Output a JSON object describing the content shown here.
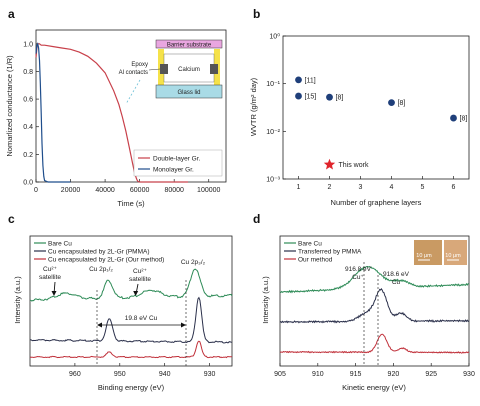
{
  "panels": {
    "a": "a",
    "b": "b",
    "c": "c",
    "d": "d"
  },
  "chart_data": [
    {
      "panel": "a",
      "type": "line",
      "xlabel": "Time (s)",
      "ylabel": "Nomarlized conductance (1/R)",
      "xlim": [
        0,
        110000
      ],
      "ylim": [
        0,
        1.1
      ],
      "xticks": [
        0,
        20000,
        40000,
        60000,
        80000,
        100000
      ],
      "xticklabels": [
        "0",
        "20000",
        "40000",
        "60000",
        "80000",
        "100000"
      ],
      "yticks": [
        0,
        0.2,
        0.4,
        0.6,
        0.8,
        1.0
      ],
      "yticklabels": [
        "0.0",
        "0.2",
        "0.4",
        "0.6",
        "0.8",
        "1.0"
      ],
      "series": [
        {
          "name": "Double-layer Gr.",
          "color": "#c8404a",
          "x": [
            0,
            500,
            1000,
            2000,
            3000,
            5000,
            10000,
            15000,
            20000,
            25000,
            30000,
            35000,
            40000,
            45000,
            48000,
            50000,
            52000,
            54000,
            55000,
            56000,
            57000,
            58000,
            58500,
            59000,
            60000,
            70000,
            88000
          ],
          "y": [
            0.9,
            0.97,
            1.0,
            1.0,
            0.99,
            0.99,
            0.98,
            0.97,
            0.96,
            0.94,
            0.91,
            0.86,
            0.79,
            0.66,
            0.56,
            0.47,
            0.37,
            0.25,
            0.19,
            0.13,
            0.07,
            0.03,
            0.015,
            0.005,
            0.0,
            0.0,
            0.0
          ]
        },
        {
          "name": "Monolayer Gr.",
          "color": "#1f4e8c",
          "x": [
            0,
            500,
            1000,
            1500,
            2000,
            2500,
            3000,
            3500,
            4000,
            4500,
            5000,
            7000,
            20000
          ],
          "y": [
            0.93,
            0.99,
            1.0,
            0.97,
            0.88,
            0.72,
            0.5,
            0.28,
            0.12,
            0.04,
            0.01,
            0.0,
            0.0
          ]
        }
      ],
      "inset": {
        "layers": [
          "Barrier substrate",
          "Calcium",
          "Glass lid"
        ],
        "callout": [
          "Epoxy",
          "Al contacts"
        ],
        "colors": {
          "barrier": "#e9a6e0",
          "calcium": "#ffffff",
          "glass": "#a9dbe6",
          "epoxy": "#f5e24a",
          "contacts": "#555555"
        }
      }
    },
    {
      "panel": "b",
      "type": "scatter",
      "xlabel": "Number of graphene layers",
      "ylabel": "WVTR (g/m² day)",
      "yscale": "log",
      "xlim": [
        0.5,
        6.5
      ],
      "ylim": [
        0.001,
        1
      ],
      "xticks": [
        1,
        2,
        3,
        4,
        5,
        6
      ],
      "xticklabels": [
        "1",
        "2",
        "3",
        "4",
        "5",
        "6"
      ],
      "yticks": [
        0.001,
        0.01,
        0.1,
        1
      ],
      "yticklabels": [
        "10⁻³",
        "10⁻²",
        "10⁻¹",
        "10⁰"
      ],
      "points": [
        {
          "x": 1,
          "y": 0.12,
          "label": "[11]"
        },
        {
          "x": 1,
          "y": 0.055,
          "label": "[15]"
        },
        {
          "x": 2,
          "y": 0.052,
          "label": "[8]"
        },
        {
          "x": 4,
          "y": 0.04,
          "label": "[8]"
        },
        {
          "x": 6,
          "y": 0.019,
          "label": "[8]"
        }
      ],
      "highlight": {
        "x": 2,
        "y": 0.002,
        "label": "This work",
        "color": "#e0242b"
      },
      "point_color": "#1f3f7a"
    },
    {
      "panel": "c",
      "type": "line",
      "xlabel": "Binding energy (eV)",
      "ylabel": "Intensity (a.u.)",
      "xlim": [
        970,
        925
      ],
      "xticks": [
        960,
        950,
        940,
        930
      ],
      "xticklabels": [
        "960",
        "950",
        "940",
        "930"
      ],
      "series": [
        {
          "name": "Bare Cu",
          "color": "#2e8b57"
        },
        {
          "name": "Cu encapsulated by 2L-Gr (PMMA)",
          "color": "#2a2f4a"
        },
        {
          "name": "Cu encapsulated by 2L-Gr (Our method)",
          "color": "#c0303a"
        }
      ],
      "annotations": {
        "sat1": [
          "Cu²⁺",
          "satellite"
        ],
        "sat2": [
          "Cu²⁺",
          "satellite"
        ],
        "p12": "Cu 2p₁/₂",
        "p32": "Cu 2p₃/₂",
        "split": "19.8 eV Cu"
      }
    },
    {
      "panel": "d",
      "type": "line",
      "xlabel": "Kinetic energy (eV)",
      "ylabel": "Intensity (a.u.)",
      "xlim": [
        905,
        930
      ],
      "xticks": [
        905,
        910,
        915,
        920,
        925,
        930
      ],
      "xticklabels": [
        "905",
        "910",
        "915",
        "920",
        "925",
        "930"
      ],
      "series": [
        {
          "name": "Bare Cu",
          "color": "#2e8b57"
        },
        {
          "name": "Transferred by PMMA",
          "color": "#2a2f4a"
        },
        {
          "name": "Our method",
          "color": "#c0303a"
        }
      ],
      "annotations": {
        "cu1": [
          "916.8 eV",
          "Cu⁺"
        ],
        "cu0": [
          "918.6 eV",
          "Cu"
        ],
        "scale1": "10 μm",
        "scale2": "10 μm"
      }
    }
  ]
}
